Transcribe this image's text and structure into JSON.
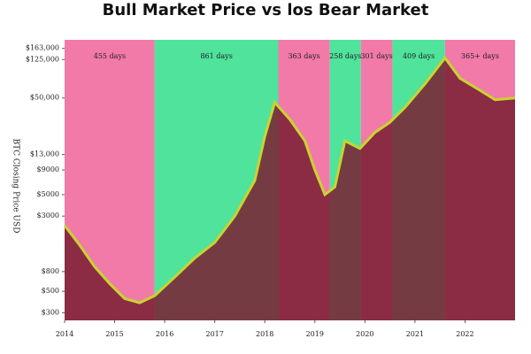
{
  "chart_data": {
    "type": "line",
    "title": "Bull Market Price vs los Bear Market",
    "y_label": "BTC Closing Price USD",
    "x": [
      2014.0,
      2014.3,
      2014.6,
      2014.9,
      2015.2,
      2015.5,
      2015.8,
      2016.2,
      2016.6,
      2017.0,
      2017.4,
      2017.8,
      2018.0,
      2018.2,
      2018.5,
      2018.8,
      2019.0,
      2019.2,
      2019.4,
      2019.6,
      2019.9,
      2020.2,
      2020.5,
      2020.8,
      2021.2,
      2021.6,
      2021.9,
      2022.3,
      2022.6,
      2023.0
    ],
    "series": [
      {
        "name": "BTC",
        "color": "#c9d42f",
        "values": [
          2400,
          1500,
          900,
          600,
          420,
          380,
          450,
          700,
          1100,
          1600,
          3000,
          7000,
          20000,
          45000,
          30000,
          18000,
          9000,
          5000,
          6000,
          18000,
          15000,
          22000,
          28000,
          40000,
          70000,
          130000,
          80000,
          60000,
          48000,
          50000
        ]
      }
    ],
    "phases": [
      {
        "start": 2014.0,
        "end": 2015.8,
        "label": "455 days",
        "color": "#f27aa9"
      },
      {
        "start": 2015.8,
        "end": 2018.27,
        "label": "861 days",
        "color": "#4fe39c"
      },
      {
        "start": 2018.27,
        "end": 2019.3,
        "label": "363 days",
        "color": "#f27aa9"
      },
      {
        "start": 2019.3,
        "end": 2019.92,
        "label": "258 days",
        "color": "#4fe39c"
      },
      {
        "start": 2019.92,
        "end": 2020.55,
        "label": "301 days",
        "color": "#f27aa9"
      },
      {
        "start": 2020.55,
        "end": 2021.6,
        "label": "409 days",
        "color": "#4fe39c"
      },
      {
        "start": 2021.6,
        "end": 2023.0,
        "label": "365+ days",
        "color": "#f27aa9"
      }
    ],
    "area_color": "#7a1f33",
    "log_y": true,
    "xlim": [
      2014,
      2023
    ],
    "xticks": [
      2014,
      2015,
      2016,
      2017,
      2018,
      2019,
      2020,
      2021,
      2022
    ],
    "ylim": [
      250,
      200000
    ],
    "yticks": [
      {
        "value": 300,
        "label": "$300"
      },
      {
        "value": 500,
        "label": "$500"
      },
      {
        "value": 800,
        "label": "$800"
      },
      {
        "value": 3000,
        "label": "$3000"
      },
      {
        "value": 5000,
        "label": "$5000"
      },
      {
        "value": 9000,
        "label": "$9000"
      },
      {
        "value": 13000,
        "label": "$13,000"
      },
      {
        "value": 50000,
        "label": "$50,000"
      },
      {
        "value": 125000,
        "label": "$125,000"
      },
      {
        "value": 163000,
        "label": "$163,000"
      }
    ]
  }
}
